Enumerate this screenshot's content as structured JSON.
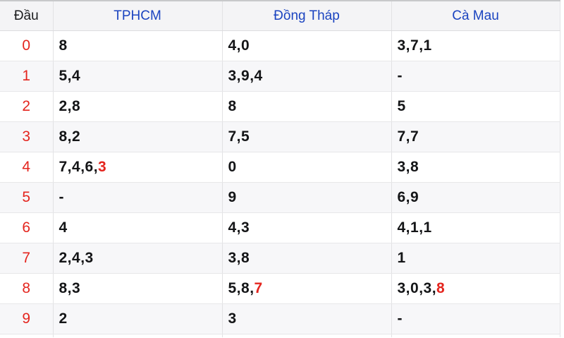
{
  "table": {
    "columns": [
      {
        "label": "Đầu",
        "link": false
      },
      {
        "label": "TPHCM",
        "link": true
      },
      {
        "label": "Đồng Tháp",
        "link": true
      },
      {
        "label": "Cà Mau",
        "link": true
      }
    ],
    "rows": [
      {
        "head": "0",
        "cells": [
          [
            {
              "t": "8"
            }
          ],
          [
            {
              "t": "4,0"
            }
          ],
          [
            {
              "t": "3,7,1"
            }
          ]
        ]
      },
      {
        "head": "1",
        "cells": [
          [
            {
              "t": "5,4"
            }
          ],
          [
            {
              "t": "3,9,4"
            }
          ],
          [
            {
              "t": "-"
            }
          ]
        ]
      },
      {
        "head": "2",
        "cells": [
          [
            {
              "t": "2,8"
            }
          ],
          [
            {
              "t": "8"
            }
          ],
          [
            {
              "t": "5"
            }
          ]
        ]
      },
      {
        "head": "3",
        "cells": [
          [
            {
              "t": "8,2"
            }
          ],
          [
            {
              "t": "7,5"
            }
          ],
          [
            {
              "t": "7,7"
            }
          ]
        ]
      },
      {
        "head": "4",
        "cells": [
          [
            {
              "t": "7,4,6,"
            },
            {
              "t": "3",
              "red": true
            }
          ],
          [
            {
              "t": "0"
            }
          ],
          [
            {
              "t": "3,8"
            }
          ]
        ]
      },
      {
        "head": "5",
        "cells": [
          [
            {
              "t": "-"
            }
          ],
          [
            {
              "t": "9"
            }
          ],
          [
            {
              "t": "6,9"
            }
          ]
        ]
      },
      {
        "head": "6",
        "cells": [
          [
            {
              "t": "4"
            }
          ],
          [
            {
              "t": "4,3"
            }
          ],
          [
            {
              "t": "4,1,1"
            }
          ]
        ]
      },
      {
        "head": "7",
        "cells": [
          [
            {
              "t": "2,4,3"
            }
          ],
          [
            {
              "t": "3,8"
            }
          ],
          [
            {
              "t": "1"
            }
          ]
        ]
      },
      {
        "head": "8",
        "cells": [
          [
            {
              "t": "8,3"
            }
          ],
          [
            {
              "t": "5,8,"
            },
            {
              "t": "7",
              "red": true
            }
          ],
          [
            {
              "t": "3,0,3,"
            },
            {
              "t": "8",
              "red": true
            }
          ]
        ]
      },
      {
        "head": "9",
        "cells": [
          [
            {
              "t": "2"
            }
          ],
          [
            {
              "t": "3"
            }
          ],
          [
            {
              "t": "-"
            }
          ]
        ]
      }
    ]
  },
  "colors": {
    "header_link_blue": "#1b44c0",
    "highlight_red": "#e4251e",
    "text_black": "#141517"
  }
}
